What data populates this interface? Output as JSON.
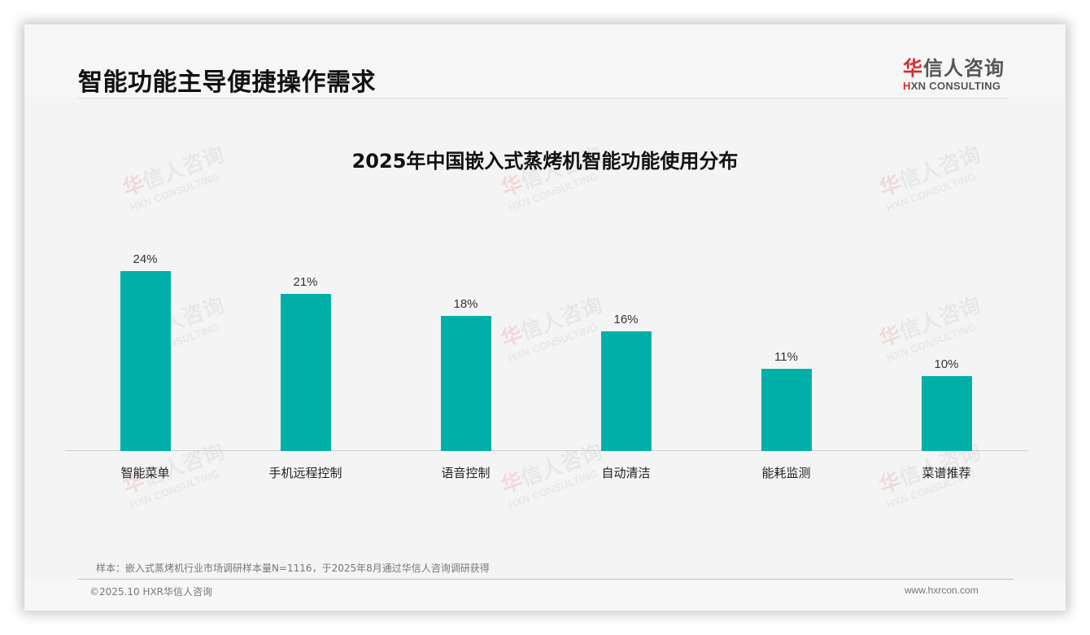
{
  "header": {
    "title": "智能功能主导便捷操作需求",
    "logo": {
      "cn_mark": "华",
      "cn_rest": "信人咨询",
      "en_mark": "H",
      "en_rest": "XN CONSULTING"
    }
  },
  "watermark": {
    "cn_mark": "华",
    "cn_rest": "信人咨询",
    "en": "HXN CONSULTING"
  },
  "chart_data": {
    "type": "bar",
    "title": "2025年中国嵌入式蒸烤机智能功能使用分布",
    "categories": [
      "智能菜单",
      "手机远程控制",
      "语音控制",
      "自动清洁",
      "能耗监测",
      "菜谱推荐"
    ],
    "values": [
      24,
      21,
      18,
      16,
      11,
      10
    ],
    "value_labels": [
      "24%",
      "21%",
      "18%",
      "16%",
      "11%",
      "10%"
    ],
    "unit": "%",
    "xlabel": "",
    "ylabel": "",
    "ylim": [
      0,
      24
    ],
    "grid": false,
    "legend": "none",
    "bar_color": "#00b0a8"
  },
  "footer": {
    "note": "样本：嵌入式蒸烤机行业市场调研样本量N=1116，于2025年8月通过华信人咨询调研获得",
    "copyright": "©2025.10 HXR华信人咨询",
    "website": "www.hxrcon.com"
  }
}
